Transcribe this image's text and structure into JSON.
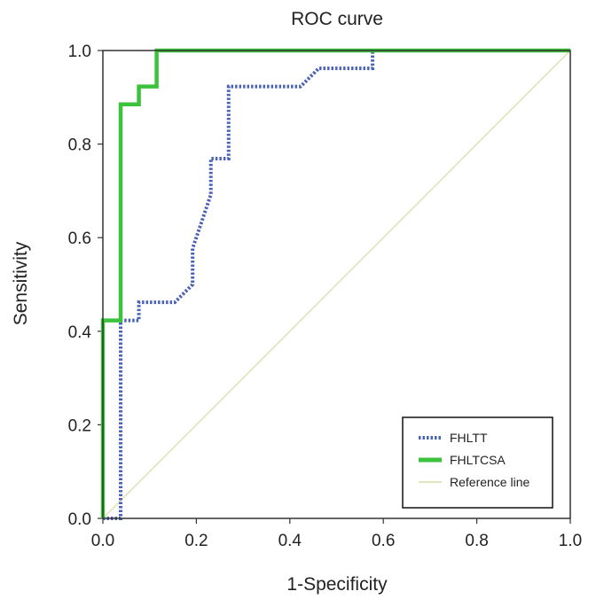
{
  "chart_data": {
    "type": "line",
    "title": "ROC curve",
    "xlabel": "1-Specificity",
    "ylabel": "Sensitivity",
    "xlim": [
      0.0,
      1.0
    ],
    "ylim": [
      0.0,
      1.0
    ],
    "x_ticks": [
      "0.0",
      "0.2",
      "0.4",
      "0.6",
      "0.8",
      "1.0"
    ],
    "y_ticks": [
      "0.0",
      "0.2",
      "0.4",
      "0.6",
      "0.8",
      "1.0"
    ],
    "legend_position": "bottom-right",
    "series": [
      {
        "name": "FHLTT",
        "color": "#4a63b5",
        "style": "dotted",
        "points": [
          [
            0.0,
            0.0
          ],
          [
            0.038,
            0.0
          ],
          [
            0.038,
            0.423
          ],
          [
            0.077,
            0.423
          ],
          [
            0.077,
            0.462
          ],
          [
            0.154,
            0.462
          ],
          [
            0.192,
            0.5
          ],
          [
            0.192,
            0.577
          ],
          [
            0.231,
            0.692
          ],
          [
            0.231,
            0.769
          ],
          [
            0.269,
            0.769
          ],
          [
            0.269,
            0.923
          ],
          [
            0.423,
            0.923
          ],
          [
            0.462,
            0.962
          ],
          [
            0.577,
            0.962
          ],
          [
            0.577,
            1.0
          ],
          [
            1.0,
            1.0
          ]
        ]
      },
      {
        "name": "FHLTCSA",
        "color": "#3cc23c",
        "style": "solid",
        "points": [
          [
            0.0,
            0.0
          ],
          [
            0.0,
            0.423
          ],
          [
            0.038,
            0.423
          ],
          [
            0.038,
            0.885
          ],
          [
            0.077,
            0.885
          ],
          [
            0.077,
            0.923
          ],
          [
            0.115,
            0.923
          ],
          [
            0.115,
            1.0
          ],
          [
            1.0,
            1.0
          ]
        ]
      },
      {
        "name": "Reference line",
        "color": "#e3e5bf",
        "style": "solid",
        "points": [
          [
            0.0,
            0.0
          ],
          [
            1.0,
            1.0
          ]
        ]
      }
    ]
  }
}
